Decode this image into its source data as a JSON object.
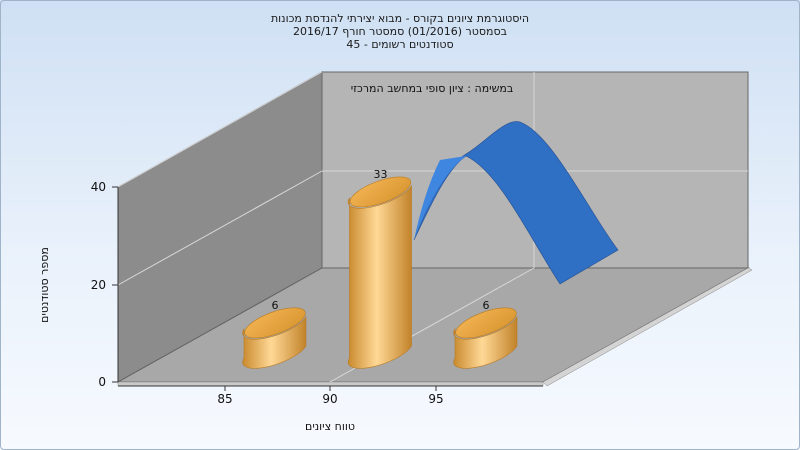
{
  "chart_data": {
    "type": "bar",
    "title_lines": [
      "היסטוגרמת ציונים בקורס - מבוא יצירתי להנדסת מכונות",
      "בסמסטר  (01/2016)  סמסטר חורף 2016/17",
      "סטודנטים רשומים - 45"
    ],
    "subtitle": "במשימה : ציון סופי במחשב המרכזי",
    "xlabel": "טווח ציונים",
    "ylabel": "מספר סטודנטים",
    "x_ticks": [
      "85",
      "90",
      "95"
    ],
    "y_ticks": [
      "0",
      "20",
      "40"
    ],
    "ylim": [
      0,
      45
    ],
    "bars": [
      {
        "x": 85,
        "value": 6,
        "label": "6"
      },
      {
        "x": 90,
        "value": 33,
        "label": "33"
      },
      {
        "x": 95,
        "value": 6,
        "label": "6"
      }
    ],
    "curve": {
      "type": "normal-distribution",
      "color": "#2f6fc4"
    },
    "colors": {
      "bar": "#e8a640",
      "bar_light": "#ffd896",
      "bar_dark": "#b97a22",
      "curve": "#2f6fc4"
    },
    "grid": true
  }
}
